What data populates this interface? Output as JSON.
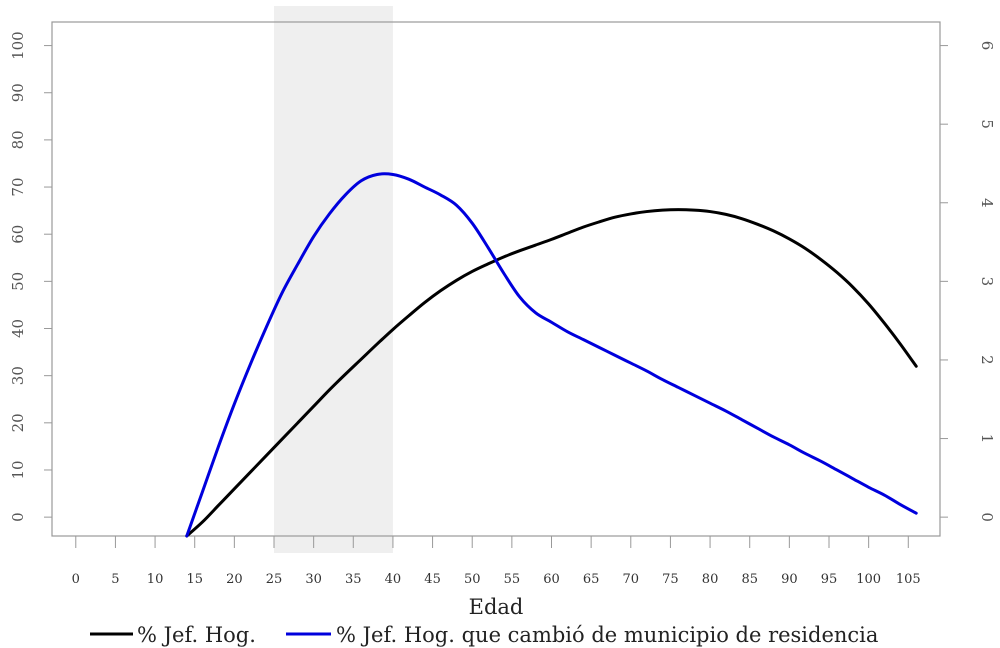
{
  "chart_data": {
    "type": "line",
    "title": "",
    "xlabel": "Edad",
    "ylabel_left": "",
    "ylabel_right": "",
    "xlim": [
      -3,
      109
    ],
    "ylim_left": [
      -4,
      105
    ],
    "ylim_right": [
      -0.24,
      6.3
    ],
    "x_ticks": [
      0,
      5,
      10,
      15,
      20,
      25,
      30,
      35,
      40,
      45,
      50,
      55,
      60,
      65,
      70,
      75,
      80,
      85,
      90,
      95,
      100,
      105
    ],
    "y_ticks_left": [
      0,
      10,
      20,
      30,
      40,
      50,
      60,
      70,
      80,
      90,
      100
    ],
    "y_ticks_right": [
      0,
      1,
      2,
      3,
      4,
      5,
      6
    ],
    "shaded_region": {
      "x_from": 25,
      "x_to": 40,
      "color": "#efefef"
    },
    "grid": false,
    "legend_position": "bottom",
    "series": [
      {
        "name": "% Jef. Hog.",
        "axis": "left",
        "color": "#000000",
        "x": [
          14,
          16,
          18,
          20,
          22,
          24,
          26,
          28,
          30,
          32,
          34,
          36,
          38,
          40,
          42,
          44,
          46,
          48,
          50,
          52,
          54,
          56,
          58,
          60,
          62,
          64,
          66,
          68,
          70,
          72,
          74,
          76,
          78,
          80,
          82,
          84,
          86,
          88,
          90,
          92,
          94,
          96,
          98,
          100,
          102,
          104,
          106
        ],
        "values": [
          -4,
          -1,
          2.5,
          6,
          9.5,
          13,
          16.5,
          20,
          23.5,
          27,
          30.3,
          33.5,
          36.7,
          39.8,
          42.7,
          45.5,
          48,
          50.2,
          52.1,
          53.7,
          55.2,
          56.5,
          57.7,
          58.9,
          60.2,
          61.5,
          62.6,
          63.6,
          64.3,
          64.8,
          65.1,
          65.2,
          65.1,
          64.8,
          64.2,
          63.3,
          62.1,
          60.7,
          59,
          57,
          54.6,
          51.9,
          48.8,
          45.2,
          41.1,
          36.7,
          32
        ]
      },
      {
        "name": "% Jef. Hog. que cambió de municipio de residencia",
        "axis": "right",
        "color": "#0000dd",
        "x": [
          14,
          16,
          18,
          20,
          22,
          24,
          26,
          28,
          30,
          32,
          34,
          36,
          38,
          40,
          42,
          44,
          46,
          48,
          50,
          52,
          54,
          56,
          58,
          60,
          62,
          64,
          66,
          68,
          70,
          72,
          74,
          76,
          78,
          80,
          82,
          84,
          86,
          88,
          90,
          92,
          94,
          96,
          98,
          100,
          102,
          104,
          106
        ],
        "values": [
          -0.24,
          0.33,
          0.9,
          1.44,
          1.94,
          2.41,
          2.85,
          3.22,
          3.57,
          3.86,
          4.1,
          4.28,
          4.36,
          4.36,
          4.3,
          4.2,
          4.1,
          3.97,
          3.74,
          3.43,
          3.1,
          2.8,
          2.6,
          2.48,
          2.36,
          2.26,
          2.16,
          2.06,
          1.96,
          1.86,
          1.75,
          1.65,
          1.55,
          1.45,
          1.35,
          1.24,
          1.13,
          1.02,
          0.92,
          0.81,
          0.71,
          0.6,
          0.49,
          0.38,
          0.28,
          0.16,
          0.05
        ]
      }
    ]
  }
}
